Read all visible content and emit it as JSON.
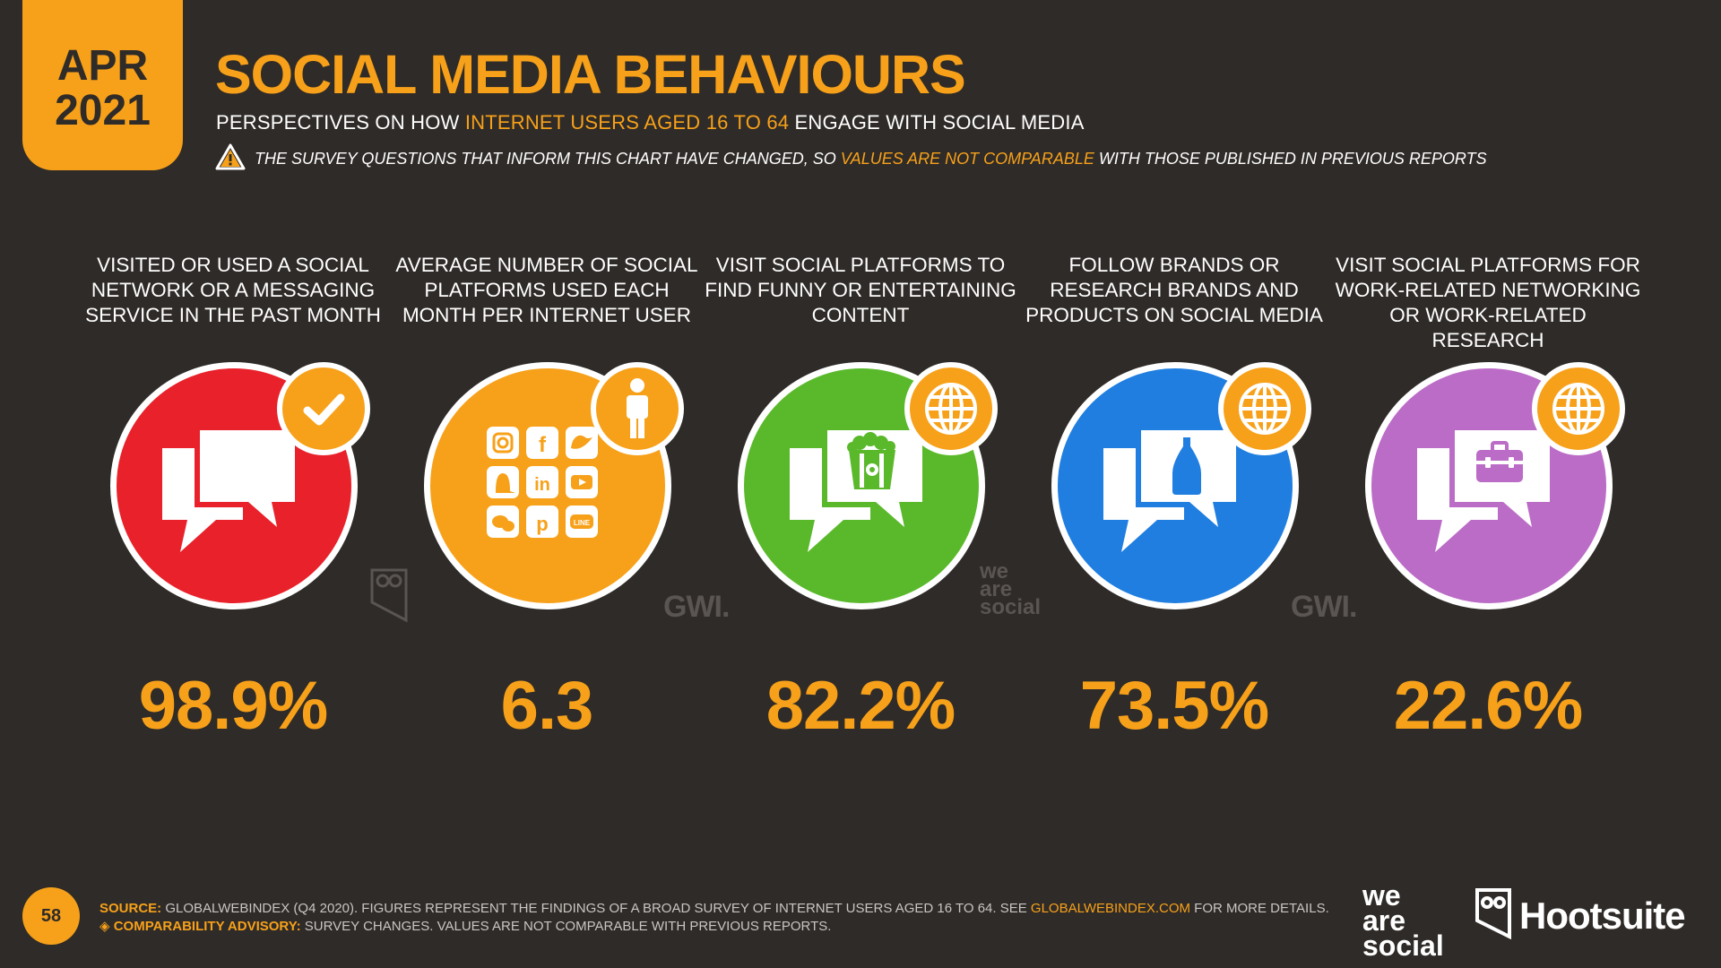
{
  "header": {
    "date_month": "APR",
    "date_year": "2021",
    "title": "SOCIAL MEDIA BEHAVIOURS",
    "subtitle_pre": "PERSPECTIVES ON HOW ",
    "subtitle_highlight": "INTERNET USERS AGED 16 TO 64",
    "subtitle_post": " ENGAGE WITH SOCIAL MEDIA",
    "warning_pre": "THE SURVEY QUESTIONS THAT INFORM THIS CHART HAVE CHANGED, SO ",
    "warning_highlight": "VALUES ARE NOT COMPARABLE",
    "warning_post": " WITH THOSE PUBLISHED IN PREVIOUS REPORTS"
  },
  "stats": [
    {
      "label": "VISITED OR USED A SOCIAL NETWORK OR A MESSAGING SERVICE IN THE PAST MONTH",
      "value": "98.9%",
      "color": "#e8212a",
      "badge_icon": "checkmark-icon",
      "icon": "chat-bubbles-icon"
    },
    {
      "label": "AVERAGE NUMBER OF SOCIAL PLATFORMS USED EACH MONTH PER INTERNET USER",
      "value": "6.3",
      "color": "#f7a11a",
      "badge_icon": "person-icon",
      "icon": "social-platforms-grid-icon"
    },
    {
      "label": "VISIT SOCIAL PLATFORMS TO FIND FUNNY OR ENTERTAINING CONTENT",
      "value": "82.2%",
      "color": "#5ab92b",
      "badge_icon": "globe-icon",
      "icon": "popcorn-chat-icon"
    },
    {
      "label": "FOLLOW BRANDS OR RESEARCH BRANDS AND PRODUCTS ON SOCIAL MEDIA",
      "value": "73.5%",
      "color": "#1f7ee0",
      "badge_icon": "globe-icon",
      "icon": "bottle-chat-icon"
    },
    {
      "label": "VISIT SOCIAL PLATFORMS FOR WORK-RELATED NETWORKING OR WORK-RELATED RESEARCH",
      "value": "22.6%",
      "color": "#bb6cc6",
      "badge_icon": "globe-icon",
      "icon": "briefcase-chat-icon"
    }
  ],
  "watermarks": {
    "gwi": "GWI.",
    "we_are_social_1": "we",
    "we_are_social_2": "are",
    "we_are_social_3": "social"
  },
  "footer": {
    "page_number": "58",
    "source_label": "SOURCE:",
    "source_text": " GLOBALWEBINDEX (Q4 2020). FIGURES REPRESENT THE FINDINGS OF A BROAD SURVEY OF INTERNET USERS AGED 16 TO 64. SEE ",
    "source_link": "GLOBALWEBINDEX.COM",
    "source_post": " FOR MORE DETAILS.",
    "advisory_label": "◈ COMPARABILITY ADVISORY:",
    "advisory_text": " SURVEY CHANGES. VALUES ARE NOT COMPARABLE WITH PREVIOUS REPORTS.",
    "brand_was_1": "we",
    "brand_was_2": "are",
    "brand_was_3": "social",
    "brand_hootsuite": "Hootsuite"
  },
  "colors": {
    "background": "#2f2b28",
    "accent": "#f7a11a"
  }
}
